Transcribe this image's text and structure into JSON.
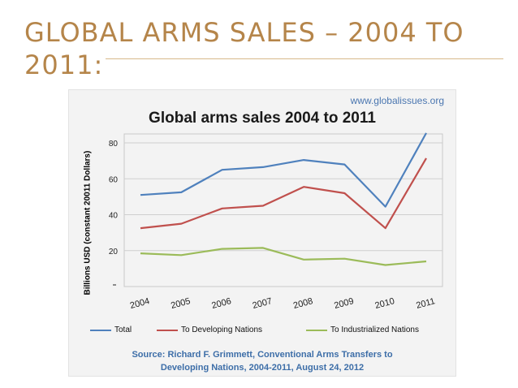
{
  "slide": {
    "title_line1": "GLOBAL ARMS SALES – 2004 TO",
    "title_line2": "2011:"
  },
  "site_url": "www.globalissues.org",
  "source_line1": "Source: Richard F. Grimmett, Conventional Arms Transfers to",
  "source_line2": "Developing Nations, 2004-2011, August 24, 2012",
  "chart_data": {
    "type": "line",
    "title": "Global arms sales 2004 to 2011",
    "ylabel": "Billions USD (constant 20011 Dollars)",
    "xlabel": "",
    "categories": [
      "2004",
      "2005",
      "2006",
      "2007",
      "2008",
      "2009",
      "2010",
      "2011"
    ],
    "ylim": [
      0,
      85
    ],
    "yticks": [
      20,
      40,
      60,
      80
    ],
    "grid": true,
    "legend_position": "bottom",
    "series": [
      {
        "name": "Total",
        "color": "#4f81bd",
        "values": [
          51,
          52.5,
          65,
          66.5,
          70.5,
          68,
          44.5,
          85.5
        ]
      },
      {
        "name": "To Developing Nations",
        "color": "#c0504d",
        "values": [
          32.5,
          35,
          43.5,
          45,
          55.5,
          52,
          32.5,
          71.5
        ]
      },
      {
        "name": "To Industrialized Nations",
        "color": "#9bbb59",
        "values": [
          18.5,
          17.5,
          21,
          21.5,
          15,
          15.5,
          12,
          14
        ]
      }
    ]
  }
}
